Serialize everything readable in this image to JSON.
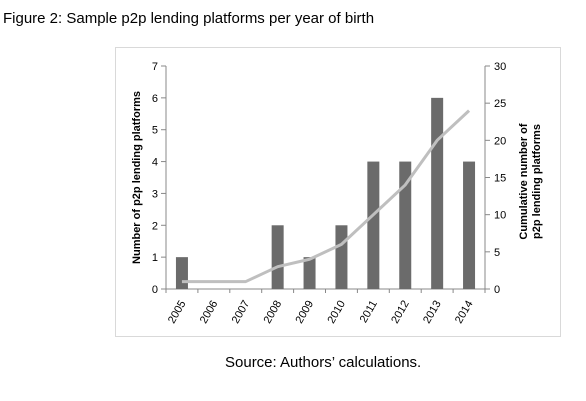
{
  "figure": {
    "title": "Figure 2: Sample p2p lending platforms per year of birth",
    "source": "Source: Authors’ calculations."
  },
  "chart_data": {
    "type": "bar",
    "categories": [
      "2005",
      "2006",
      "2007",
      "2008",
      "2009",
      "2010",
      "2011",
      "2012",
      "2013",
      "2014"
    ],
    "series": [
      {
        "name": "Number of p2p lending platforms",
        "type": "bar",
        "axis": "left",
        "values": [
          1,
          0,
          0,
          2,
          1,
          2,
          4,
          4,
          6,
          4
        ]
      },
      {
        "name": "Cumulative number of p2p lending platforms",
        "type": "line",
        "axis": "right",
        "values": [
          1,
          1,
          1,
          3,
          4,
          6,
          10,
          14,
          20,
          24
        ]
      }
    ],
    "ylabel": "Number of p2p lending platforms",
    "y2label_line1": "Cumulative number of",
    "y2label_line2": "p2p lending platforms",
    "ylim": [
      0,
      7
    ],
    "y2lim": [
      0,
      30
    ],
    "yticks": [
      0,
      1,
      2,
      3,
      4,
      5,
      6,
      7
    ],
    "y2ticks": [
      0,
      5,
      10,
      15,
      20,
      25,
      30
    ],
    "colors": {
      "bar": "#6b6b6b",
      "line": "#bfbfbf",
      "axis": "#888888"
    },
    "grid": false,
    "legend": "none"
  }
}
